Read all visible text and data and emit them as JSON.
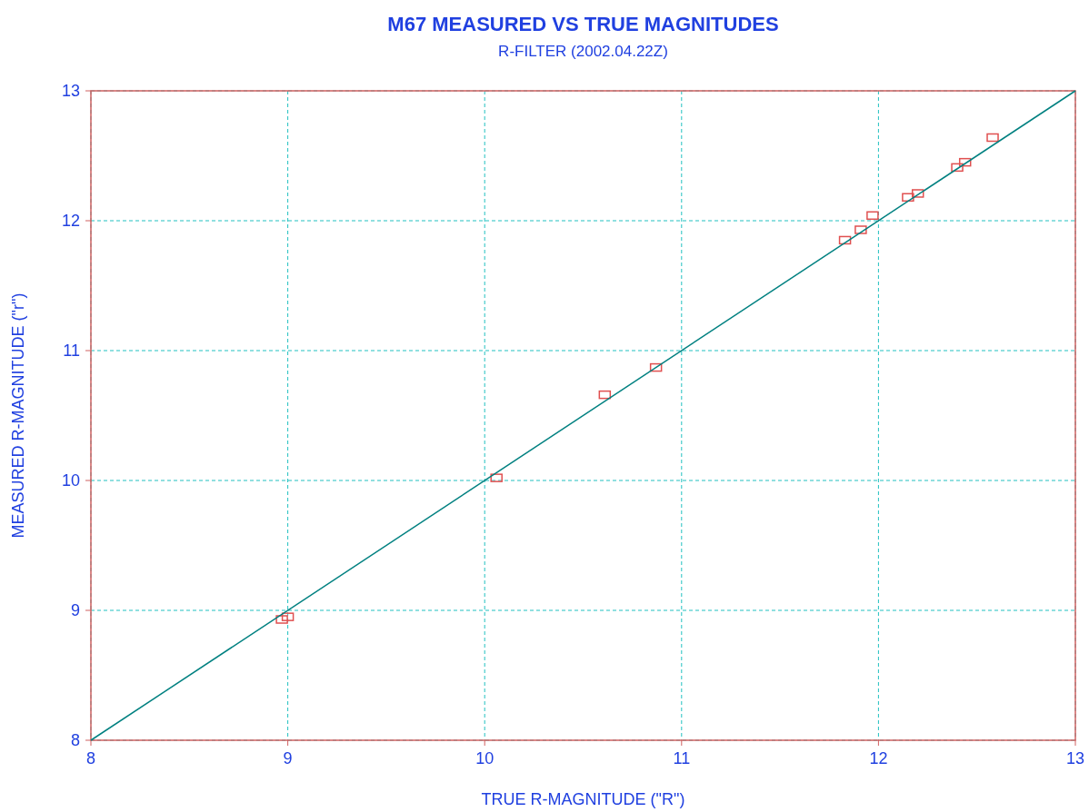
{
  "chart_data": {
    "type": "scatter",
    "title": "M67 MEASURED VS TRUE MAGNITUDES",
    "subtitle": "R-FILTER (2002.04.22Z)",
    "xlabel": "TRUE R-MAGNITUDE (\"R\")",
    "ylabel": "MEASURED R-MAGNITUDE (\"r\")",
    "xlim": [
      8,
      13
    ],
    "ylim": [
      8,
      13
    ],
    "xticks": [
      8,
      9,
      10,
      11,
      12,
      13
    ],
    "yticks": [
      8,
      9,
      10,
      11,
      12,
      13
    ],
    "grid": true,
    "series": [
      {
        "color": "#e05050",
        "marker": "square",
        "x": [
          8.97,
          9.0,
          10.06,
          10.61,
          10.87,
          11.83,
          11.91,
          11.97,
          12.15,
          12.2,
          12.4,
          12.44,
          12.58
        ],
        "values": [
          8.93,
          8.95,
          10.02,
          10.66,
          10.87,
          11.85,
          11.93,
          12.04,
          12.18,
          12.21,
          12.41,
          12.45,
          12.64
        ]
      },
      {
        "type": "line",
        "color": "#008080",
        "x": [
          8,
          13
        ],
        "values": [
          8,
          13
        ],
        "line_style": "solid"
      }
    ]
  }
}
